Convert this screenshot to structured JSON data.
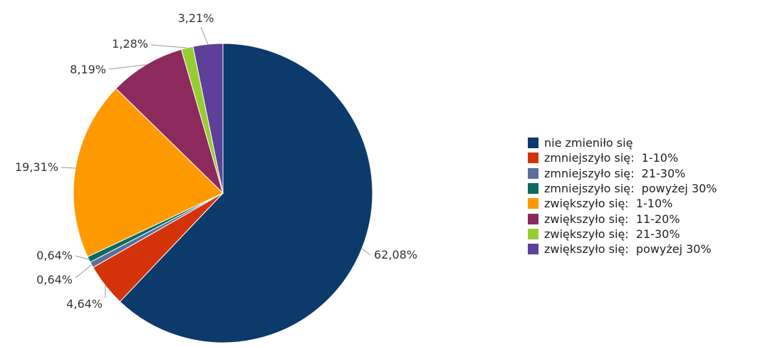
{
  "chart_data": {
    "type": "pie",
    "legend_position": "right",
    "slices": [
      {
        "label": "nie zmieniło się",
        "value": 62.08,
        "value_label": "62,08%",
        "color": "#0b3a6b"
      },
      {
        "label": "zmniejszyło się:  1-10%",
        "value": 4.64,
        "value_label": "4,64%",
        "color": "#d4330a"
      },
      {
        "label": "zmniejszyło się:  21-30%",
        "value": 0.64,
        "value_label": "0,64%",
        "color": "#5b6f9c"
      },
      {
        "label": "zmniejszyło się:  powyżej 30%",
        "value": 0.64,
        "value_label": "0,64%",
        "color": "#0b6b5e"
      },
      {
        "label": "zwiększyło się:  1-10%",
        "value": 19.31,
        "value_label": "19,31%",
        "color": "#ff9900"
      },
      {
        "label": "zwiększyło się:  11-20%",
        "value": 8.19,
        "value_label": "8,19%",
        "color": "#8c2a5e"
      },
      {
        "label": "zwiększyło się:  21-30%",
        "value": 1.28,
        "value_label": "1,28%",
        "color": "#99cc33"
      },
      {
        "label": "zwiększyło się:  powyżej 30%",
        "value": 3.21,
        "value_label": "3,21%",
        "color": "#5e3f99"
      }
    ]
  }
}
